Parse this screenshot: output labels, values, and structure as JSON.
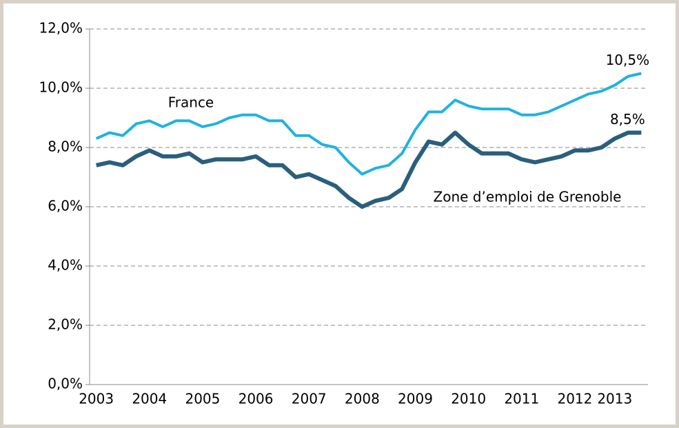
{
  "chart_data": {
    "type": "line",
    "categories": [
      "2003",
      null,
      null,
      null,
      "2004",
      null,
      null,
      null,
      "2005",
      null,
      null,
      null,
      "2006",
      null,
      null,
      null,
      "2007",
      null,
      null,
      null,
      "2008",
      null,
      null,
      null,
      "2009",
      null,
      null,
      null,
      "2010",
      null,
      null,
      null,
      "2011",
      null,
      null,
      null,
      "2012",
      null,
      null,
      "2013",
      null,
      null
    ],
    "series": [
      {
        "name": "France",
        "color": "#1fb2e3",
        "values": [
          8.3,
          8.5,
          8.4,
          8.8,
          8.9,
          8.7,
          8.9,
          8.9,
          8.7,
          8.8,
          9.0,
          9.1,
          9.1,
          8.9,
          8.9,
          8.4,
          8.4,
          8.1,
          8.0,
          7.5,
          7.1,
          7.3,
          7.4,
          7.8,
          8.6,
          9.2,
          9.2,
          9.6,
          9.4,
          9.3,
          9.3,
          9.3,
          9.1,
          9.1,
          9.2,
          9.4,
          9.6,
          9.8,
          9.9,
          10.1,
          10.4,
          10.5
        ],
        "value_labels": [
          null,
          null,
          null,
          null,
          null,
          null,
          null,
          null,
          null,
          null,
          null,
          null,
          null,
          null,
          null,
          null,
          null,
          null,
          null,
          null,
          null,
          null,
          null,
          null,
          null,
          null,
          null,
          null,
          null,
          null,
          null,
          null,
          null,
          null,
          null,
          null,
          null,
          null,
          null,
          null,
          null,
          "10,5%"
        ]
      },
      {
        "name": "Zone d’emploi de Grenoble",
        "color": "#2a5f7c",
        "values": [
          7.4,
          7.5,
          7.4,
          7.7,
          7.9,
          7.7,
          7.7,
          7.8,
          7.5,
          7.6,
          7.6,
          7.6,
          7.7,
          7.4,
          7.4,
          7.0,
          7.1,
          6.9,
          6.7,
          6.3,
          6.0,
          6.2,
          6.3,
          6.6,
          7.5,
          8.2,
          8.1,
          8.5,
          8.1,
          7.8,
          7.8,
          7.8,
          7.6,
          7.5,
          7.6,
          7.7,
          7.9,
          7.9,
          8.0,
          8.3,
          8.5,
          8.5
        ],
        "value_labels": [
          null,
          null,
          null,
          null,
          null,
          null,
          null,
          null,
          null,
          null,
          null,
          null,
          null,
          null,
          null,
          null,
          null,
          null,
          null,
          null,
          null,
          null,
          null,
          null,
          null,
          null,
          null,
          null,
          null,
          null,
          null,
          null,
          null,
          null,
          null,
          null,
          null,
          null,
          null,
          null,
          null,
          "8,5%"
        ]
      }
    ],
    "ylim": [
      0,
      12
    ],
    "yticks": [
      {
        "value": 0,
        "label": "0,0%"
      },
      {
        "value": 2,
        "label": "2,0%"
      },
      {
        "value": 4,
        "label": "4,0%"
      },
      {
        "value": 6,
        "label": "6,0%"
      },
      {
        "value": 8,
        "label": "8,0%"
      },
      {
        "value": 10,
        "label": "10,0%"
      },
      {
        "value": 12,
        "label": "12,0%"
      }
    ],
    "grid": true
  }
}
